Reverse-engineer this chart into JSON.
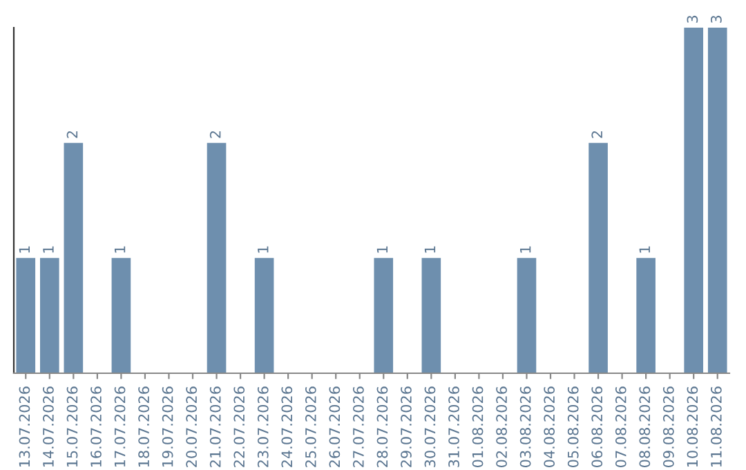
{
  "chart_data": {
    "type": "bar",
    "categories": [
      "13.07.2026",
      "14.07.2026",
      "15.07.2026",
      "16.07.2026",
      "17.07.2026",
      "18.07.2026",
      "19.07.2026",
      "20.07.2026",
      "21.07.2026",
      "22.07.2026",
      "23.07.2026",
      "24.07.2026",
      "25.07.2026",
      "26.07.2026",
      "27.07.2026",
      "28.07.2026",
      "29.07.2026",
      "30.07.2026",
      "31.07.2026",
      "01.08.2026",
      "02.08.2026",
      "03.08.2026",
      "04.08.2026",
      "05.08.2026",
      "06.08.2026",
      "07.08.2026",
      "08.08.2026",
      "09.08.2026",
      "10.08.2026",
      "11.08.2026"
    ],
    "values": [
      1,
      1,
      2,
      0,
      1,
      0,
      0,
      0,
      2,
      0,
      1,
      0,
      0,
      0,
      0,
      1,
      0,
      1,
      0,
      0,
      0,
      1,
      0,
      0,
      2,
      0,
      1,
      0,
      3,
      3
    ],
    "value_labels": [
      "1",
      "1",
      "2",
      null,
      "1",
      null,
      null,
      null,
      "2",
      null,
      "1",
      null,
      null,
      null,
      null,
      "1",
      null,
      "1",
      null,
      null,
      null,
      "1",
      null,
      null,
      "2",
      null,
      "1",
      null,
      "3",
      "3"
    ],
    "color": "#6e8fae",
    "ylim": [
      0,
      3
    ],
    "tick_labels": "x",
    "grid": false,
    "legend": false
  }
}
